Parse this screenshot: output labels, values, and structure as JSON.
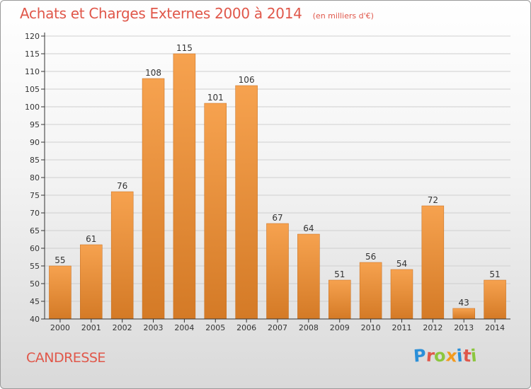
{
  "header": {
    "title": "Achats et Charges Externes 2000 à 2014",
    "subtitle": "(en milliers d'€)"
  },
  "footer": {
    "commune": "CANDRESSE",
    "logo_letters": [
      {
        "ch": "P",
        "color": "#2b8fd8"
      },
      {
        "ch": "r",
        "color": "#e0574a"
      },
      {
        "ch": "o",
        "color": "#8cc63f"
      },
      {
        "ch": "x",
        "color": "#f39a1e"
      },
      {
        "ch": "i",
        "color": "#2b8fd8"
      },
      {
        "ch": "t",
        "color": "#e0574a"
      },
      {
        "ch": "i",
        "color": "#8cc63f"
      }
    ]
  },
  "chart_data": {
    "type": "bar",
    "categories": [
      "2000",
      "2001",
      "2002",
      "2003",
      "2004",
      "2005",
      "2006",
      "2007",
      "2008",
      "2009",
      "2010",
      "2011",
      "2012",
      "2013",
      "2014"
    ],
    "values": [
      55,
      61,
      76,
      108,
      115,
      101,
      106,
      67,
      64,
      51,
      56,
      54,
      72,
      43,
      51
    ],
    "title": "Achats et Charges Externes 2000 à 2014",
    "subtitle": "(en milliers d'€)",
    "ylim": [
      40,
      120
    ],
    "ytick_step": 5,
    "grid": "horizontal",
    "bar_color_light": "#f6a24f",
    "bar_color_dark": "#d47a26"
  }
}
